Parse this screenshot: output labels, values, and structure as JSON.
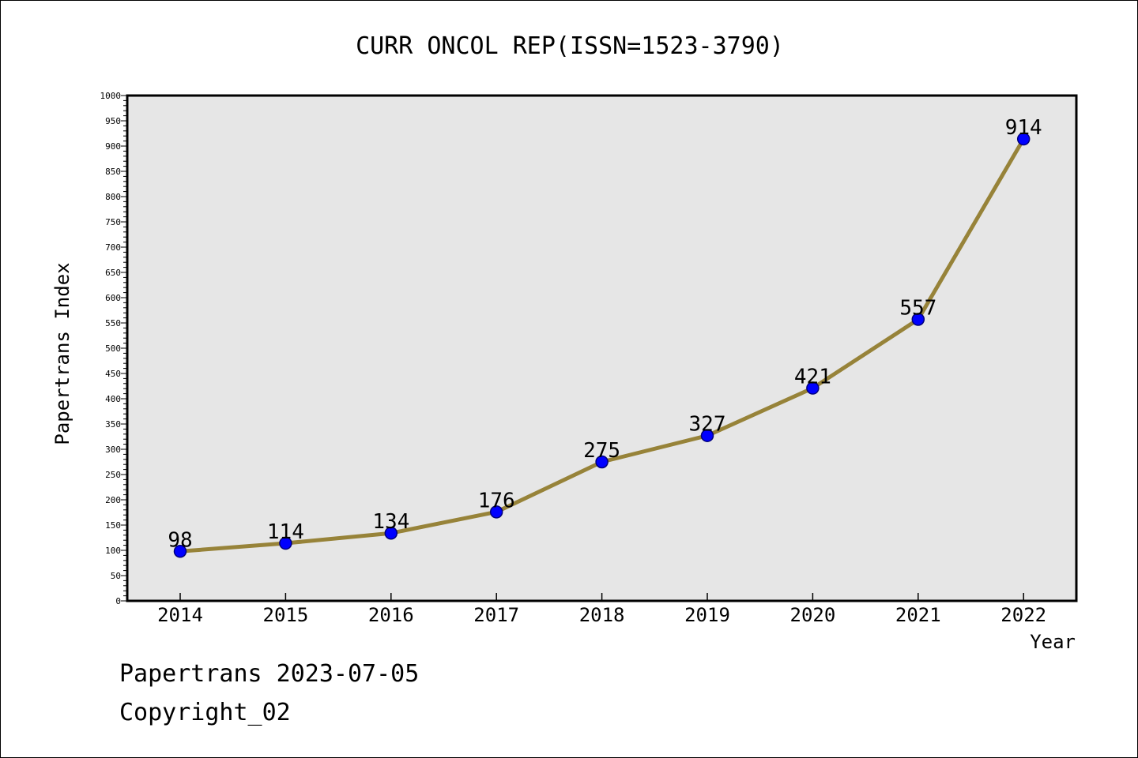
{
  "chart_data": {
    "type": "line",
    "title": "CURR ONCOL REP(ISSN=1523-3790)",
    "xlabel": "Year",
    "ylabel": "Papertrans Index",
    "categories": [
      "2014",
      "2015",
      "2016",
      "2017",
      "2018",
      "2019",
      "2020",
      "2021",
      "2022"
    ],
    "series": [
      {
        "values": [
          98,
          114,
          134,
          176,
          275,
          327,
          421,
          557,
          914
        ],
        "data_labels": [
          "98",
          "114",
          "134",
          "176",
          "275",
          "327",
          "421",
          "557",
          "914"
        ]
      }
    ],
    "ylim": [
      0,
      1000
    ],
    "yticks": [
      0,
      50,
      100,
      150,
      200,
      250,
      300,
      350,
      400,
      450,
      500,
      550,
      600,
      650,
      700,
      750,
      800,
      850,
      900,
      950,
      1000
    ],
    "ytick_labels": [
      "0",
      "50",
      "100",
      "150",
      "200",
      "250",
      "300",
      "350",
      "400",
      "450",
      "500",
      "550",
      "600",
      "650",
      "700",
      "750",
      "800",
      "850",
      "900",
      "950",
      "1000"
    ],
    "grid": false,
    "legend": "none",
    "colors": {
      "line": "#978339",
      "marker_fill": "#0000ff",
      "marker_stroke": "#00007a",
      "plot_background": "#e6e6e6"
    }
  },
  "footer": {
    "date_line": "Papertrans 2023-07-05",
    "copyright_line": "Copyright_02"
  }
}
